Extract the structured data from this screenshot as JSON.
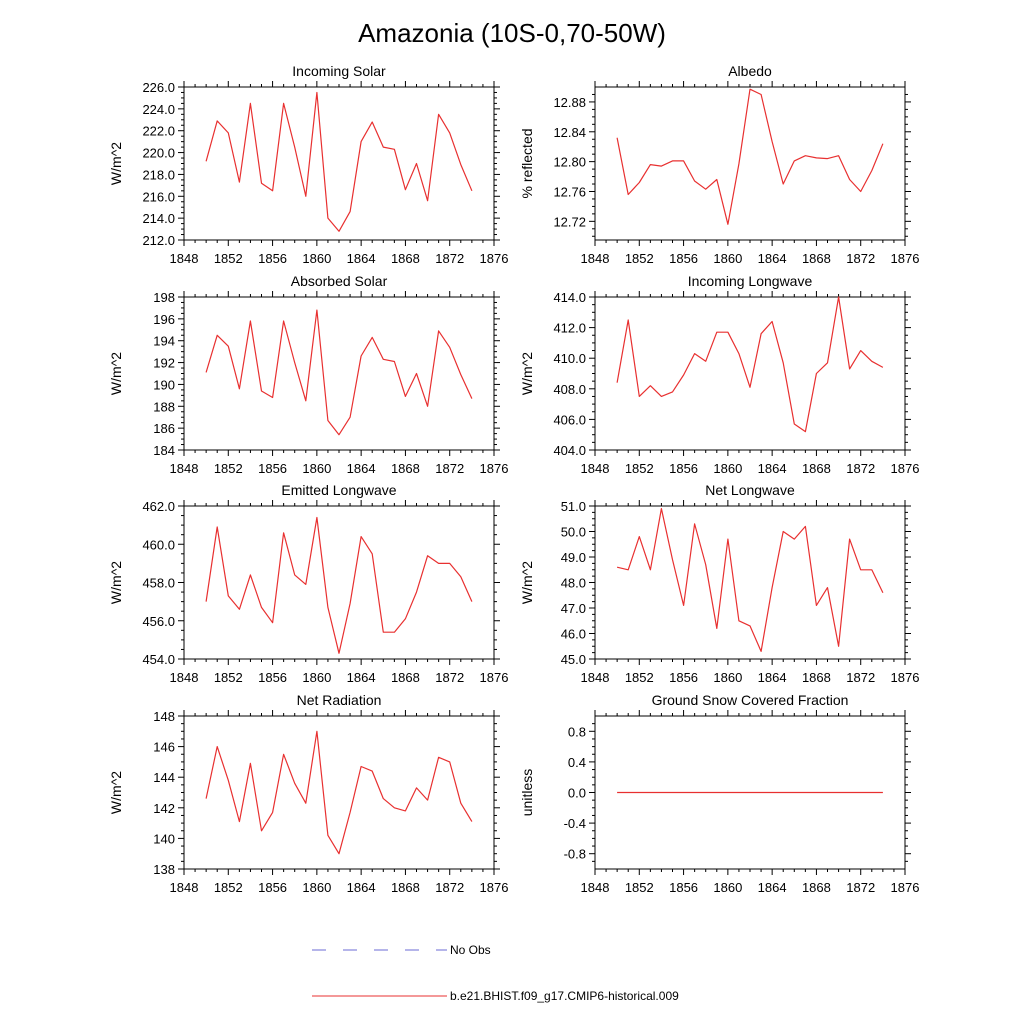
{
  "figure": {
    "title": "Amazonia (10S-0,70-50W)"
  },
  "legend": [
    {
      "label": "No Obs",
      "color": "#6b6bd6",
      "dashed": true
    },
    {
      "label": "b.e21.BHIST.f09_g17.CMIP6-historical.009",
      "color": "#e83030",
      "dashed": false
    }
  ],
  "chart_data": [
    {
      "type": "line",
      "title": "Incoming Solar",
      "xlabel": "",
      "ylabel": "W/m^2",
      "xlim": [
        1848,
        1876
      ],
      "ylim": [
        212,
        226
      ],
      "xticks": [
        1848,
        1852,
        1856,
        1860,
        1864,
        1868,
        1872,
        1876
      ],
      "yticks": [
        212,
        214,
        216,
        218,
        220,
        222,
        224,
        226
      ],
      "ytick_labels": [
        "212.0",
        "214.0",
        "216.0",
        "218.0",
        "220.0",
        "222.0",
        "224.0",
        "226.0"
      ],
      "x": [
        1850,
        1851,
        1852,
        1853,
        1854,
        1855,
        1856,
        1857,
        1858,
        1859,
        1860,
        1861,
        1862,
        1863,
        1864,
        1865,
        1866,
        1867,
        1868,
        1869,
        1870,
        1871,
        1872,
        1873,
        1874
      ],
      "series": [
        {
          "name": "b.e21.BHIST.f09_g17.CMIP6-historical.009",
          "color": "#e83030",
          "values": [
            219.2,
            222.9,
            221.8,
            217.3,
            224.5,
            217.2,
            216.5,
            224.5,
            220.5,
            216.0,
            225.5,
            214.0,
            212.8,
            214.6,
            221.0,
            222.8,
            220.5,
            220.3,
            216.6,
            219.0,
            215.6,
            223.5,
            221.8,
            218.9,
            216.5
          ]
        }
      ]
    },
    {
      "type": "line",
      "title": "Albedo",
      "xlabel": "",
      "ylabel": "% reflected",
      "xlim": [
        1848,
        1876
      ],
      "ylim": [
        12.695,
        12.9
      ],
      "xticks": [
        1848,
        1852,
        1856,
        1860,
        1864,
        1868,
        1872,
        1876
      ],
      "yticks": [
        12.72,
        12.76,
        12.8,
        12.84,
        12.88
      ],
      "ytick_labels": [
        "12.72",
        "12.76",
        "12.80",
        "12.84",
        "12.88"
      ],
      "x": [
        1850,
        1851,
        1852,
        1853,
        1854,
        1855,
        1856,
        1857,
        1858,
        1859,
        1860,
        1861,
        1862,
        1863,
        1864,
        1865,
        1866,
        1867,
        1868,
        1869,
        1870,
        1871,
        1872,
        1873,
        1874
      ],
      "series": [
        {
          "name": "b.e21.BHIST.f09_g17.CMIP6-historical.009",
          "color": "#e83030",
          "values": [
            12.832,
            12.756,
            12.772,
            12.796,
            12.794,
            12.801,
            12.801,
            12.774,
            12.763,
            12.776,
            12.716,
            12.797,
            12.897,
            12.89,
            12.827,
            12.77,
            12.801,
            12.808,
            12.805,
            12.804,
            12.808,
            12.776,
            12.76,
            12.788,
            12.824
          ]
        }
      ]
    },
    {
      "type": "line",
      "title": "Absorbed Solar",
      "xlabel": "",
      "ylabel": "W/m^2",
      "xlim": [
        1848,
        1876
      ],
      "ylim": [
        184,
        198
      ],
      "xticks": [
        1848,
        1852,
        1856,
        1860,
        1864,
        1868,
        1872,
        1876
      ],
      "yticks": [
        184,
        186,
        188,
        190,
        192,
        194,
        196,
        198
      ],
      "ytick_labels": [
        "184",
        "186",
        "188",
        "190",
        "192",
        "194",
        "196",
        "198"
      ],
      "x": [
        1850,
        1851,
        1852,
        1853,
        1854,
        1855,
        1856,
        1857,
        1858,
        1859,
        1860,
        1861,
        1862,
        1863,
        1864,
        1865,
        1866,
        1867,
        1868,
        1869,
        1870,
        1871,
        1872,
        1873,
        1874
      ],
      "series": [
        {
          "name": "b.e21.BHIST.f09_g17.CMIP6-historical.009",
          "color": "#e83030",
          "values": [
            191.1,
            194.5,
            193.5,
            189.6,
            195.8,
            189.4,
            188.8,
            195.8,
            192.0,
            188.5,
            196.8,
            186.7,
            185.4,
            187.0,
            192.6,
            194.3,
            192.3,
            192.1,
            188.9,
            191.0,
            188.0,
            194.9,
            193.4,
            190.9,
            188.7
          ]
        }
      ]
    },
    {
      "type": "line",
      "title": "Incoming Longwave",
      "xlabel": "",
      "ylabel": "W/m^2",
      "xlim": [
        1848,
        1876
      ],
      "ylim": [
        404,
        414
      ],
      "xticks": [
        1848,
        1852,
        1856,
        1860,
        1864,
        1868,
        1872,
        1876
      ],
      "yticks": [
        404,
        406,
        408,
        410,
        412,
        414
      ],
      "ytick_labels": [
        "404.0",
        "406.0",
        "408.0",
        "410.0",
        "412.0",
        "414.0"
      ],
      "x": [
        1850,
        1851,
        1852,
        1853,
        1854,
        1855,
        1856,
        1857,
        1858,
        1859,
        1860,
        1861,
        1862,
        1863,
        1864,
        1865,
        1866,
        1867,
        1868,
        1869,
        1870,
        1871,
        1872,
        1873,
        1874
      ],
      "series": [
        {
          "name": "b.e21.BHIST.f09_g17.CMIP6-historical.009",
          "color": "#e83030",
          "values": [
            408.4,
            412.5,
            407.5,
            408.2,
            407.5,
            407.8,
            408.9,
            410.3,
            409.8,
            411.7,
            411.7,
            410.3,
            408.1,
            411.6,
            412.4,
            409.7,
            405.7,
            405.2,
            409.0,
            409.7,
            414.0,
            409.3,
            410.5,
            409.8,
            409.4
          ]
        }
      ]
    },
    {
      "type": "line",
      "title": "Emitted Longwave",
      "xlabel": "",
      "ylabel": "W/m^2",
      "xlim": [
        1848,
        1876
      ],
      "ylim": [
        454,
        462
      ],
      "xticks": [
        1848,
        1852,
        1856,
        1860,
        1864,
        1868,
        1872,
        1876
      ],
      "yticks": [
        454,
        456,
        458,
        460,
        462
      ],
      "ytick_labels": [
        "454.0",
        "456.0",
        "458.0",
        "460.0",
        "462.0"
      ],
      "x": [
        1850,
        1851,
        1852,
        1853,
        1854,
        1855,
        1856,
        1857,
        1858,
        1859,
        1860,
        1861,
        1862,
        1863,
        1864,
        1865,
        1866,
        1867,
        1868,
        1869,
        1870,
        1871,
        1872,
        1873,
        1874
      ],
      "series": [
        {
          "name": "b.e21.BHIST.f09_g17.CMIP6-historical.009",
          "color": "#e83030",
          "values": [
            457.0,
            460.9,
            457.3,
            456.6,
            458.4,
            456.7,
            455.9,
            460.6,
            458.4,
            457.9,
            461.4,
            456.7,
            454.3,
            456.9,
            460.4,
            459.5,
            455.4,
            455.4,
            456.1,
            457.5,
            459.4,
            459.0,
            459.0,
            458.3,
            457.0
          ]
        }
      ]
    },
    {
      "type": "line",
      "title": "Net Longwave",
      "xlabel": "",
      "ylabel": "W/m^2",
      "xlim": [
        1848,
        1876
      ],
      "ylim": [
        45,
        51
      ],
      "xticks": [
        1848,
        1852,
        1856,
        1860,
        1864,
        1868,
        1872,
        1876
      ],
      "yticks": [
        45,
        46,
        47,
        48,
        49,
        50,
        51
      ],
      "ytick_labels": [
        "45.0",
        "46.0",
        "47.0",
        "48.0",
        "49.0",
        "50.0",
        "51.0"
      ],
      "x": [
        1850,
        1851,
        1852,
        1853,
        1854,
        1855,
        1856,
        1857,
        1858,
        1859,
        1860,
        1861,
        1862,
        1863,
        1864,
        1865,
        1866,
        1867,
        1868,
        1869,
        1870,
        1871,
        1872,
        1873,
        1874
      ],
      "series": [
        {
          "name": "b.e21.BHIST.f09_g17.CMIP6-historical.009",
          "color": "#e83030",
          "values": [
            48.6,
            48.5,
            49.8,
            48.5,
            50.9,
            48.9,
            47.1,
            50.3,
            48.7,
            46.2,
            49.7,
            46.5,
            46.3,
            45.3,
            47.8,
            50.0,
            49.7,
            50.2,
            47.1,
            47.8,
            45.5,
            49.7,
            48.5,
            48.5,
            47.6
          ]
        }
      ]
    },
    {
      "type": "line",
      "title": "Net Radiation",
      "xlabel": "",
      "ylabel": "W/m^2",
      "xlim": [
        1848,
        1876
      ],
      "ylim": [
        138,
        148
      ],
      "xticks": [
        1848,
        1852,
        1856,
        1860,
        1864,
        1868,
        1872,
        1876
      ],
      "yticks": [
        138,
        140,
        142,
        144,
        146,
        148
      ],
      "ytick_labels": [
        "138",
        "140",
        "142",
        "144",
        "146",
        "148"
      ],
      "x": [
        1850,
        1851,
        1852,
        1853,
        1854,
        1855,
        1856,
        1857,
        1858,
        1859,
        1860,
        1861,
        1862,
        1863,
        1864,
        1865,
        1866,
        1867,
        1868,
        1869,
        1870,
        1871,
        1872,
        1873,
        1874
      ],
      "series": [
        {
          "name": "b.e21.BHIST.f09_g17.CMIP6-historical.009",
          "color": "#e83030",
          "values": [
            142.6,
            146.0,
            143.8,
            141.1,
            144.9,
            140.5,
            141.7,
            145.5,
            143.6,
            142.3,
            147.0,
            140.2,
            139.0,
            141.7,
            144.7,
            144.4,
            142.6,
            142.0,
            141.8,
            143.3,
            142.5,
            145.3,
            145.0,
            142.3,
            141.1
          ]
        }
      ]
    },
    {
      "type": "line",
      "title": "Ground Snow Covered Fraction",
      "xlabel": "",
      "ylabel": "unitless",
      "xlim": [
        1848,
        1876
      ],
      "ylim": [
        -1.0,
        1.0
      ],
      "xticks": [
        1848,
        1852,
        1856,
        1860,
        1864,
        1868,
        1872,
        1876
      ],
      "yticks": [
        -0.8,
        -0.4,
        0.0,
        0.4,
        0.8
      ],
      "ytick_labels": [
        "-0.8",
        "-0.4",
        "0.0",
        "0.4",
        "0.8"
      ],
      "x": [
        1850,
        1851,
        1852,
        1853,
        1854,
        1855,
        1856,
        1857,
        1858,
        1859,
        1860,
        1861,
        1862,
        1863,
        1864,
        1865,
        1866,
        1867,
        1868,
        1869,
        1870,
        1871,
        1872,
        1873,
        1874
      ],
      "series": [
        {
          "name": "b.e21.BHIST.f09_g17.CMIP6-historical.009",
          "color": "#e83030",
          "values": [
            0,
            0,
            0,
            0,
            0,
            0,
            0,
            0,
            0,
            0,
            0,
            0,
            0,
            0,
            0,
            0,
            0,
            0,
            0,
            0,
            0,
            0,
            0,
            0,
            0
          ]
        }
      ]
    }
  ]
}
